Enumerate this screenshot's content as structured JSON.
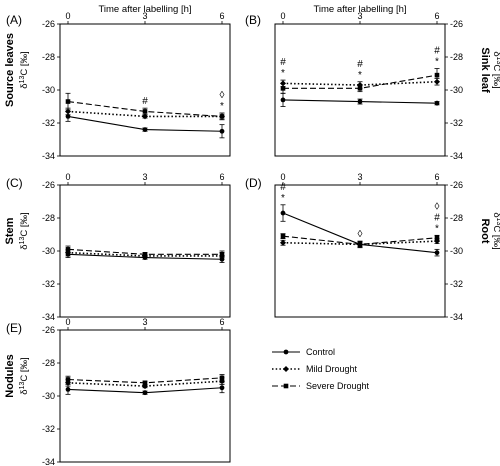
{
  "figure": {
    "x_axis_title": "Time after labelling [h]",
    "y_unit_label": "δ13C [‰]",
    "legend": {
      "entries": [
        {
          "label": "Control",
          "style": "solid"
        },
        {
          "label": "Mild Drought",
          "style": "dotted"
        },
        {
          "label": "Severe Drought",
          "style": "dashed"
        }
      ]
    }
  },
  "chart_data": [
    {
      "type": "line",
      "panel": "(A)",
      "tissue_label": "Source leaves",
      "x": [
        0,
        3,
        6
      ],
      "xlim": [
        0,
        6
      ],
      "ylim": [
        -34,
        -26
      ],
      "yticks": [
        -26,
        -28,
        -30,
        -32,
        -34
      ],
      "series": [
        {
          "name": "Control",
          "y": [
            -31.6,
            -32.4,
            -32.5
          ],
          "err": [
            0.3,
            0.1,
            0.4
          ]
        },
        {
          "name": "Mild Drought",
          "y": [
            -31.3,
            -31.6,
            -31.6
          ],
          "err": [
            0.2,
            0.1,
            0.2
          ]
        },
        {
          "name": "Severe Drought",
          "y": [
            -30.7,
            -31.3,
            -31.6
          ],
          "err": [
            0.5,
            0.2,
            0.2
          ]
        }
      ],
      "annotations": [
        {
          "x": 3,
          "text": "#"
        },
        {
          "x": 6,
          "text": "◊"
        },
        {
          "x": 6,
          "text": "*"
        }
      ]
    },
    {
      "type": "line",
      "panel": "(B)",
      "tissue_label": "Sink leaf",
      "x": [
        0,
        3,
        6
      ],
      "xlim": [
        0,
        6
      ],
      "ylim": [
        -34,
        -26
      ],
      "yticks": [
        -26,
        -28,
        -30,
        -32,
        -34
      ],
      "series": [
        {
          "name": "Control",
          "y": [
            -30.6,
            -30.7,
            -30.8
          ],
          "err": [
            0.4,
            0.15,
            0.1
          ]
        },
        {
          "name": "Mild Drought",
          "y": [
            -29.6,
            -29.7,
            -29.5
          ],
          "err": [
            0.2,
            0.2,
            0.2
          ]
        },
        {
          "name": "Severe Drought",
          "y": [
            -29.9,
            -29.9,
            -29.1
          ],
          "err": [
            0.3,
            0.2,
            0.4
          ]
        }
      ],
      "annotations": [
        {
          "x": 0,
          "text": "#"
        },
        {
          "x": 0,
          "text": "*"
        },
        {
          "x": 3,
          "text": "#"
        },
        {
          "x": 3,
          "text": "*"
        },
        {
          "x": 6,
          "text": "#"
        },
        {
          "x": 6,
          "text": "*"
        }
      ]
    },
    {
      "type": "line",
      "panel": "(C)",
      "tissue_label": "Stem",
      "x": [
        0,
        3,
        6
      ],
      "xlim": [
        0,
        6
      ],
      "ylim": [
        -34,
        -26
      ],
      "yticks": [
        -26,
        -28,
        -30,
        -32,
        -34
      ],
      "series": [
        {
          "name": "Control",
          "y": [
            -30.2,
            -30.4,
            -30.5
          ],
          "err": [
            0.2,
            0.1,
            0.2
          ]
        },
        {
          "name": "Mild Drought",
          "y": [
            -30.1,
            -30.3,
            -30.3
          ],
          "err": [
            0.2,
            0.1,
            0.2
          ]
        },
        {
          "name": "Severe Drought",
          "y": [
            -29.9,
            -30.2,
            -30.2
          ],
          "err": [
            0.2,
            0.1,
            0.2
          ]
        }
      ],
      "annotations": []
    },
    {
      "type": "line",
      "panel": "(D)",
      "tissue_label": "Root",
      "x": [
        0,
        3,
        6
      ],
      "xlim": [
        0,
        6
      ],
      "ylim": [
        -34,
        -26
      ],
      "yticks": [
        -26,
        -28,
        -30,
        -32,
        -34
      ],
      "series": [
        {
          "name": "Control",
          "y": [
            -27.7,
            -29.6,
            -30.1
          ],
          "err": [
            0.5,
            0.2,
            0.2
          ]
        },
        {
          "name": "Mild Drought",
          "y": [
            -29.5,
            -29.6,
            -29.4
          ],
          "err": [
            0.15,
            0.15,
            0.15
          ]
        },
        {
          "name": "Severe Drought",
          "y": [
            -29.1,
            -29.6,
            -29.2
          ],
          "err": [
            0.15,
            0.15,
            0.15
          ]
        }
      ],
      "annotations": [
        {
          "x": 0,
          "text": "#"
        },
        {
          "x": 0,
          "text": "*"
        },
        {
          "x": 3,
          "text": "◊"
        },
        {
          "x": 6,
          "text": "◊"
        },
        {
          "x": 6,
          "text": "#"
        },
        {
          "x": 6,
          "text": "*"
        }
      ]
    },
    {
      "type": "line",
      "panel": "(E)",
      "tissue_label": "Nodules",
      "x": [
        0,
        3,
        6
      ],
      "xlim": [
        0,
        6
      ],
      "ylim": [
        -34,
        -26
      ],
      "yticks": [
        -26,
        -28,
        -30,
        -32,
        -34
      ],
      "series": [
        {
          "name": "Control",
          "y": [
            -29.6,
            -29.8,
            -29.5
          ],
          "err": [
            0.3,
            0.1,
            0.3
          ]
        },
        {
          "name": "Mild Drought",
          "y": [
            -29.2,
            -29.4,
            -29.1
          ],
          "err": [
            0.2,
            0.1,
            0.2
          ]
        },
        {
          "name": "Severe Drought",
          "y": [
            -29.0,
            -29.2,
            -28.9
          ],
          "err": [
            0.2,
            0.1,
            0.2
          ]
        }
      ],
      "annotations": []
    }
  ]
}
